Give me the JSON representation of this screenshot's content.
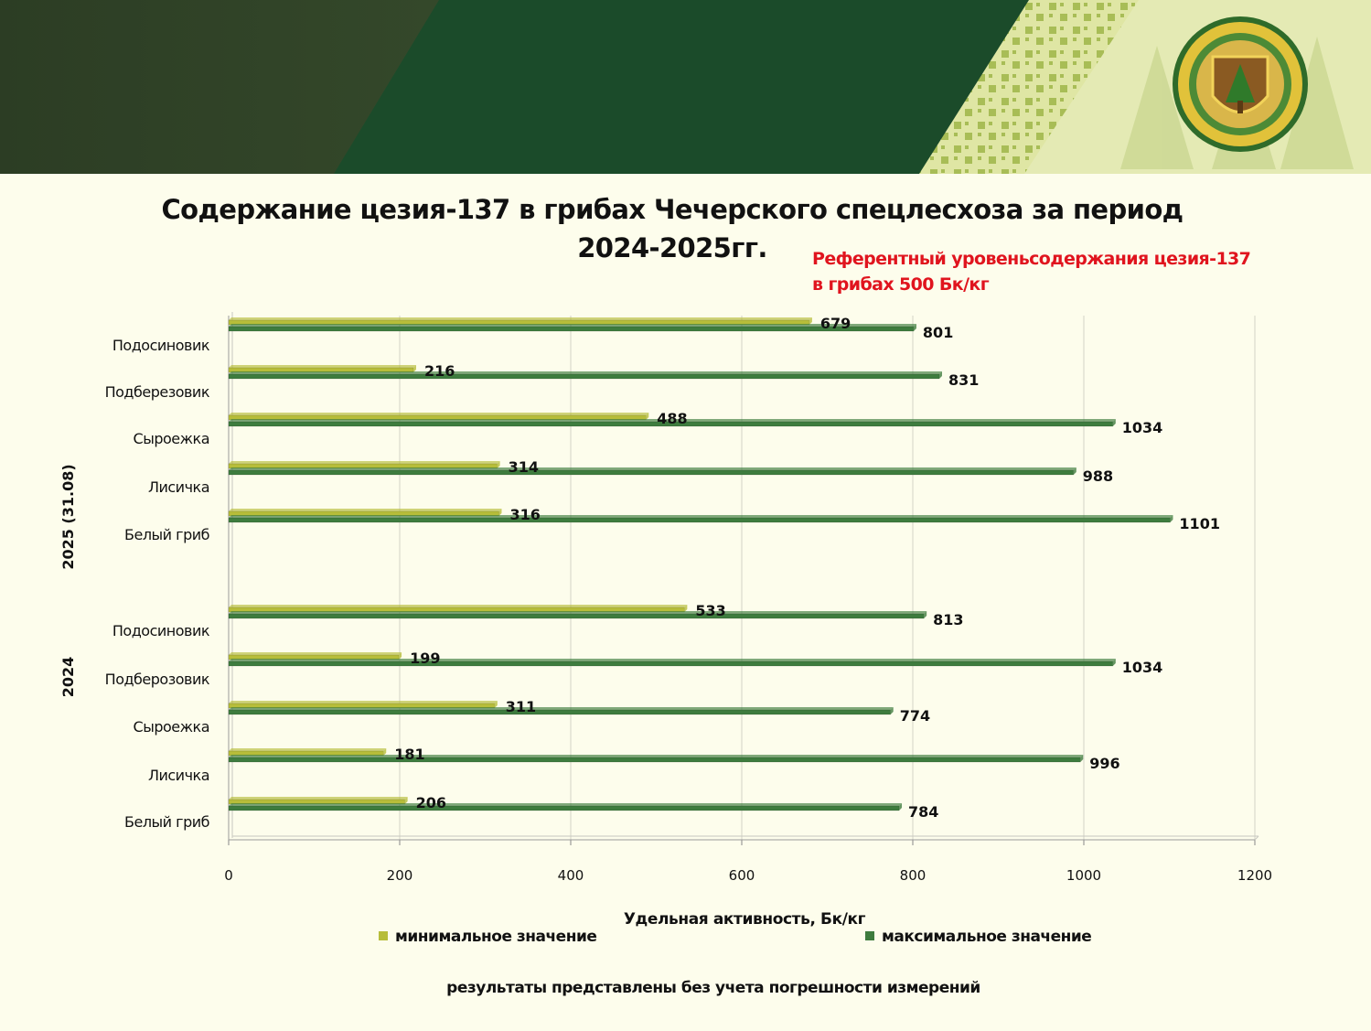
{
  "chart_data": {
    "type": "bar",
    "orientation": "horizontal",
    "title": "Содержание цезия-137 в грибах Чечерского  спецлесхоза за период 2024-2025гг.",
    "title_line1": "Содержание цезия-137 в грибах Чечерского  спецлесхоза за период",
    "title_line2": "2024-2025гг.",
    "annotation_line1": "Референтный уровеньсодержания цезия-137",
    "annotation_line2": "в грибах 500 Бк/кг",
    "xlabel": "Удельная активность, Бк/кг",
    "xlim": [
      0,
      1200
    ],
    "xticks": [
      "0",
      "200",
      "400",
      "600",
      "800",
      "1000",
      "1200"
    ],
    "grid": true,
    "legend_position": "bottom",
    "groups": [
      {
        "name": "2025 (31.08)",
        "categories": [
          "Подосиновик",
          "Подберезовик",
          "Сыроежка",
          "Лисичка",
          "Белый гриб"
        ],
        "series": [
          {
            "name": "минимальное значение",
            "values": [
              679,
              216,
              488,
              314,
              316
            ]
          },
          {
            "name": "максимальное значение",
            "values": [
              801,
              831,
              1034,
              988,
              1101
            ]
          }
        ]
      },
      {
        "name": "2024",
        "categories": [
          "Подосиновик",
          "Подберозовик",
          "Сыроежка",
          "Лисичка",
          "Белый гриб"
        ],
        "series": [
          {
            "name": "минимальное значение",
            "values": [
              533,
              199,
              311,
              181,
              206
            ]
          },
          {
            "name": "максимальное значение",
            "values": [
              813,
              1034,
              774,
              996,
              784
            ]
          }
        ]
      }
    ],
    "colors": {
      "min": "#b7bd3a",
      "max": "#3e7c3e"
    }
  },
  "footnote": "результаты представлены без учета погрешности измерений"
}
